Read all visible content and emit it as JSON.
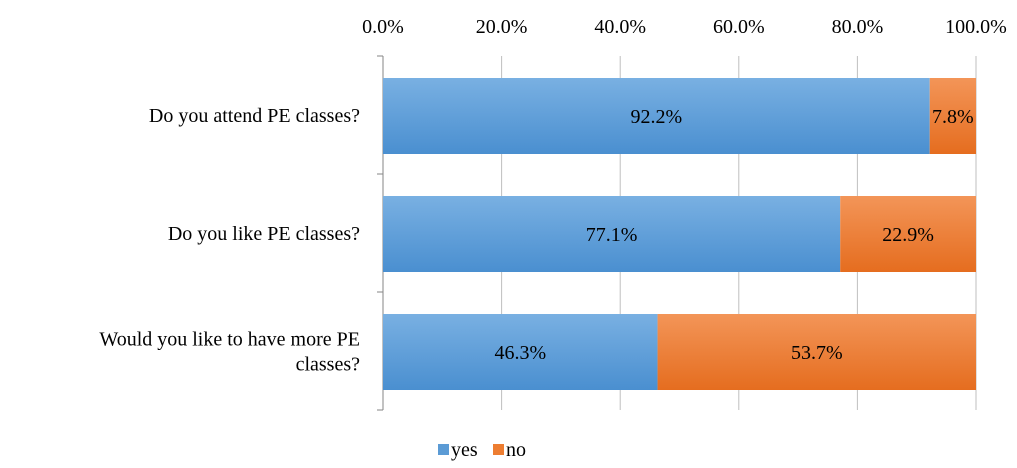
{
  "chart_data": {
    "type": "bar",
    "orientation": "horizontal",
    "stacked": true,
    "categories": [
      [
        "Do you attend PE classes?"
      ],
      [
        "Do you like PE classes?"
      ],
      [
        "Would you like to have more PE",
        "classes?"
      ]
    ],
    "series": [
      {
        "name": "yes",
        "values": [
          92.2,
          77.1,
          46.3
        ],
        "labels": [
          "92.2%",
          "77.1%",
          "46.3%"
        ],
        "color": "#5B9BD5"
      },
      {
        "name": "no",
        "values": [
          7.8,
          22.9,
          53.7
        ],
        "labels": [
          "7.8%",
          "22.9%",
          "53.7%"
        ],
        "color": "#ED7D31"
      }
    ],
    "xlim": [
      0,
      100
    ],
    "xticks": [
      0,
      20,
      40,
      60,
      80,
      100
    ],
    "xtick_labels": [
      "0.0%",
      "20.0%",
      "40.0%",
      "60.0%",
      "80.0%",
      "100.0%"
    ],
    "x_axis_position": "top",
    "grid": true,
    "legend": "bottom"
  }
}
